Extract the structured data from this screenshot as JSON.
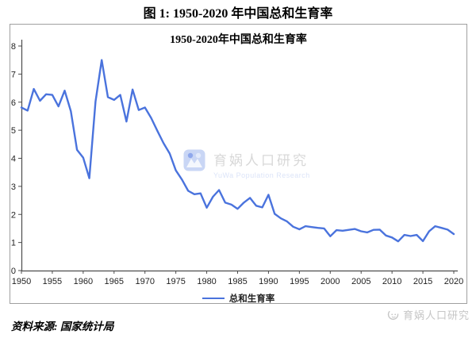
{
  "figure": {
    "title": "图 1: 1950-2020 年中国总和生育率",
    "source": "资料来源: 国家统计局"
  },
  "chart": {
    "title": "1950-2020年中国总和生育率",
    "line_color": "#4a73dd",
    "watermark": {
      "cn": "育娲人口研究",
      "en": "YuWa Population Research"
    }
  },
  "footer_logo": {
    "text": "育娲人口研究"
  },
  "chart_data": {
    "type": "line",
    "title": "1950-2020年中国总和生育率",
    "xlabel": "",
    "ylabel": "",
    "ylim": [
      0,
      8
    ],
    "y_ticks": [
      0,
      1,
      2,
      3,
      4,
      5,
      6,
      7,
      8
    ],
    "x_ticks": [
      1950,
      1955,
      1960,
      1965,
      1970,
      1975,
      1980,
      1985,
      1990,
      1995,
      2000,
      2005,
      2010,
      2015,
      2020
    ],
    "grid": false,
    "legend_position": "bottom",
    "x": [
      1950,
      1951,
      1952,
      1953,
      1954,
      1955,
      1956,
      1957,
      1958,
      1959,
      1960,
      1961,
      1962,
      1963,
      1964,
      1965,
      1966,
      1967,
      1968,
      1969,
      1970,
      1971,
      1972,
      1973,
      1974,
      1975,
      1976,
      1977,
      1978,
      1979,
      1980,
      1981,
      1982,
      1983,
      1984,
      1985,
      1986,
      1987,
      1988,
      1989,
      1990,
      1991,
      1992,
      1993,
      1994,
      1995,
      1996,
      1997,
      1998,
      1999,
      2000,
      2001,
      2002,
      2003,
      2004,
      2005,
      2006,
      2007,
      2008,
      2009,
      2010,
      2011,
      2012,
      2013,
      2014,
      2015,
      2016,
      2017,
      2018,
      2019,
      2020
    ],
    "series": [
      {
        "name": "总和生育率",
        "values": [
          5.81,
          5.7,
          6.47,
          6.05,
          6.28,
          6.26,
          5.85,
          6.41,
          5.68,
          4.3,
          4.02,
          3.29,
          6.02,
          7.5,
          6.18,
          6.08,
          6.26,
          5.31,
          6.45,
          5.72,
          5.81,
          5.44,
          4.98,
          4.54,
          4.17,
          3.57,
          3.24,
          2.84,
          2.72,
          2.75,
          2.24,
          2.63,
          2.87,
          2.42,
          2.35,
          2.2,
          2.42,
          2.59,
          2.31,
          2.25,
          2.7,
          2.02,
          1.86,
          1.75,
          1.56,
          1.47,
          1.58,
          1.55,
          1.52,
          1.5,
          1.22,
          1.44,
          1.42,
          1.45,
          1.48,
          1.4,
          1.36,
          1.45,
          1.46,
          1.25,
          1.18,
          1.04,
          1.27,
          1.23,
          1.27,
          1.05,
          1.4,
          1.58,
          1.52,
          1.46,
          1.3
        ]
      }
    ]
  }
}
